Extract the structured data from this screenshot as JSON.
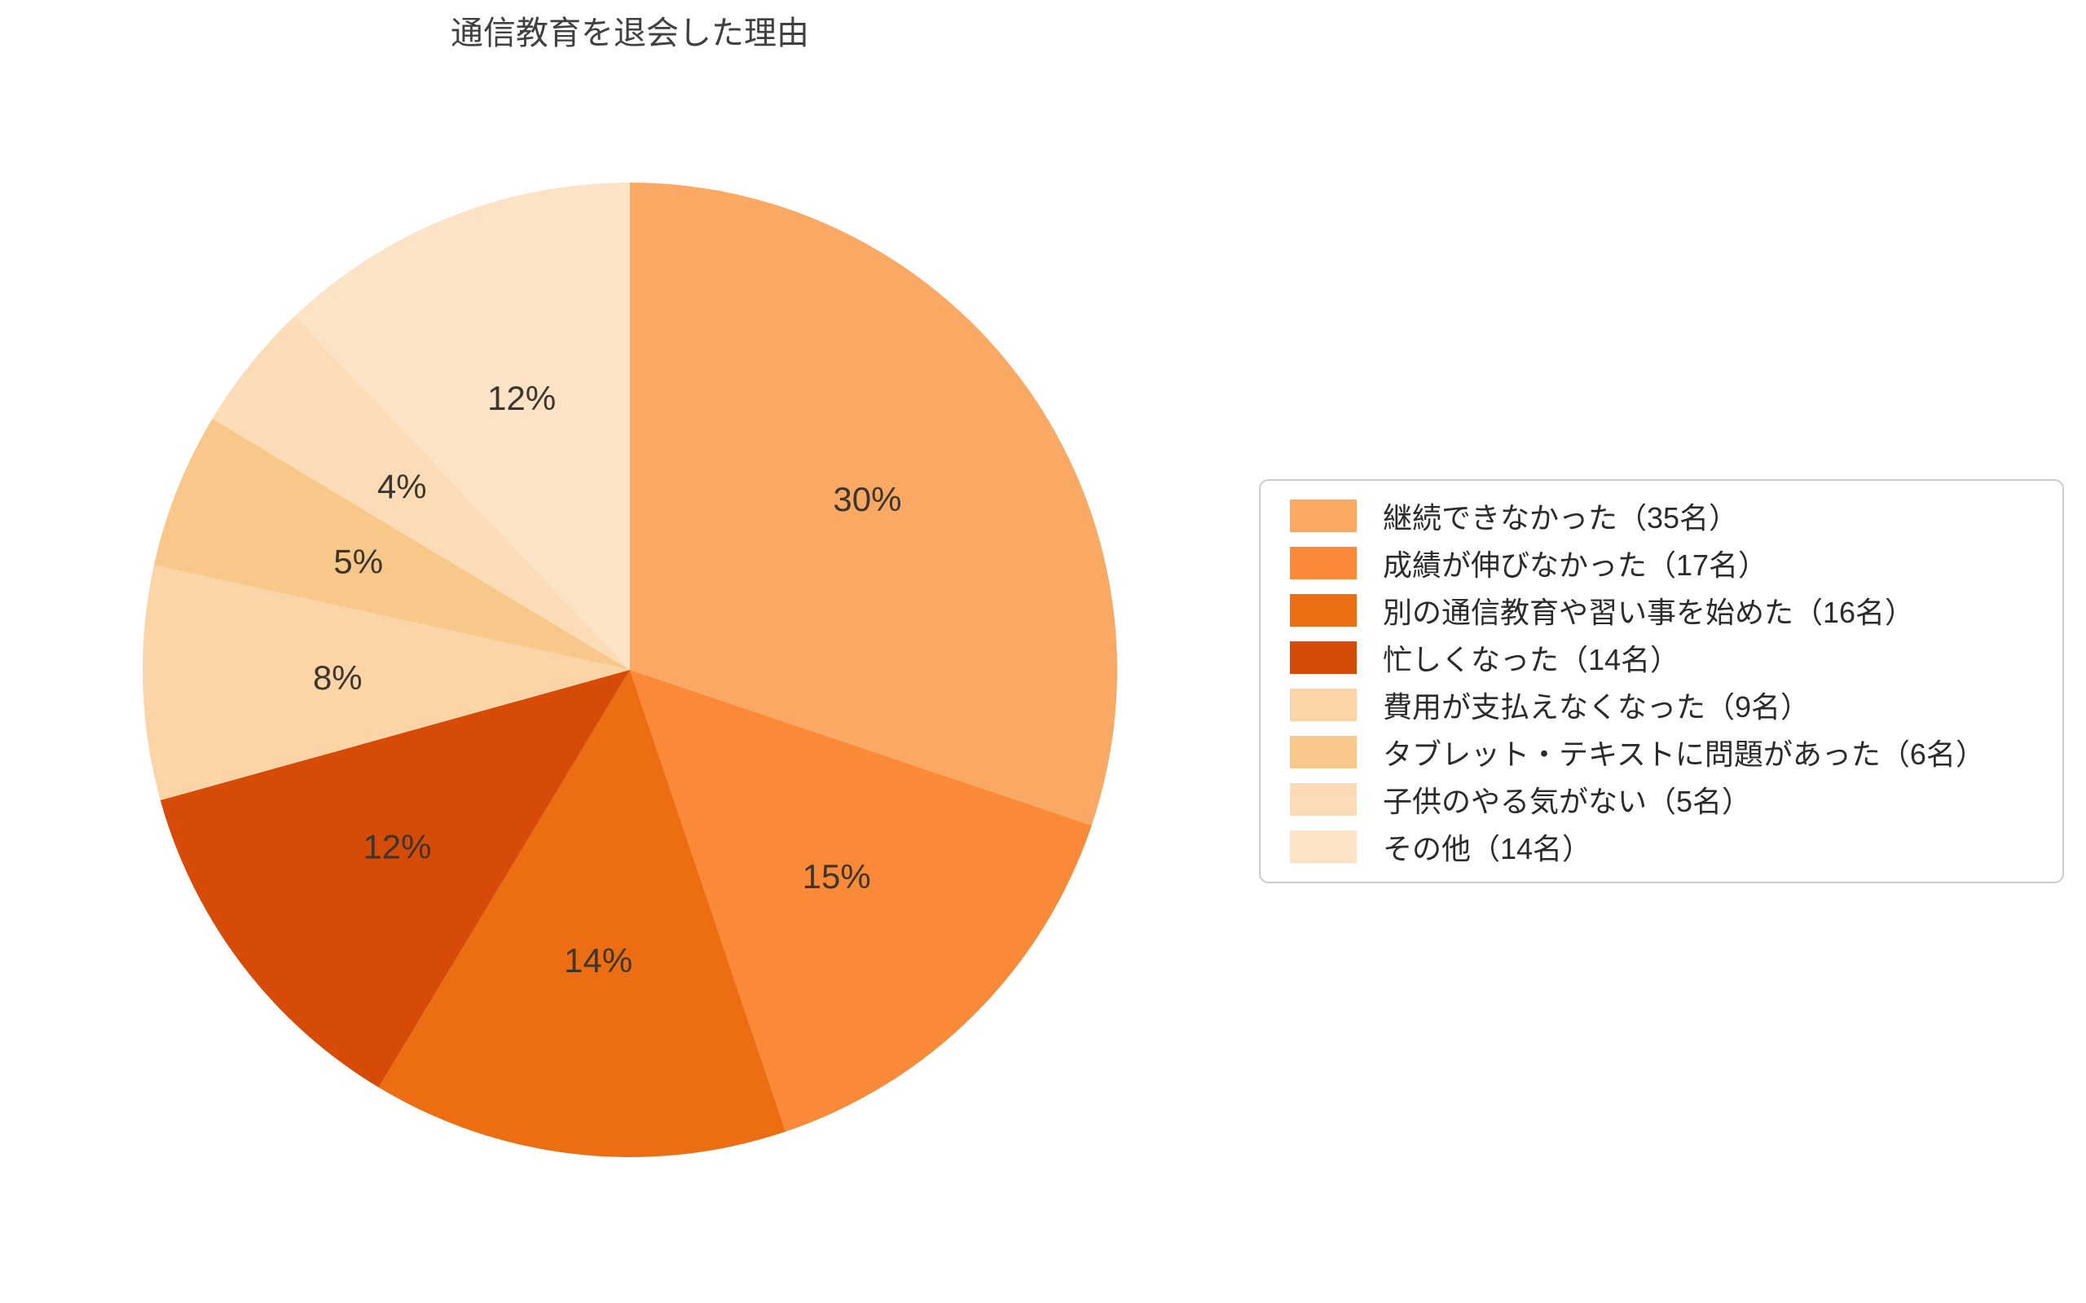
{
  "chart_data": {
    "type": "pie",
    "title": "通信教育を退会した理由",
    "start_angle": "top",
    "direction": "clockwise",
    "pct_distance": 0.6,
    "legend_position": "right",
    "legend_border_color": "#cbcbcb",
    "pct_label_color": "#3e362c",
    "title_color": "#404040",
    "legend_text_color": "#2b2b2b",
    "slices": [
      {
        "label": "継続できなかった（35名）",
        "value": 35,
        "pct": "30%",
        "color": "#f9a963"
      },
      {
        "label": "成績が伸びなかった（17名）",
        "value": 17,
        "pct": "15%",
        "color": "#fa8a38"
      },
      {
        "label": "別の通信教育や習い事を始めた（16名）",
        "value": 16,
        "pct": "14%",
        "color": "#ed6d12"
      },
      {
        "label": "忙しくなった（14名）",
        "value": 14,
        "pct": "12%",
        "color": "#d54b07"
      },
      {
        "label": "費用が支払えなくなった（9名）",
        "value": 9,
        "pct": "8%",
        "color": "#fbd5a8"
      },
      {
        "label": "タブレット・テキストに問題があった（6名）",
        "value": 6,
        "pct": "5%",
        "color": "#f8c88a"
      },
      {
        "label": "子供のやる気がない（5名）",
        "value": 5,
        "pct": "4%",
        "color": "#fbdcb6"
      },
      {
        "label": "その他（14名）",
        "value": 14,
        "pct": "12%",
        "color": "#fce3c6"
      }
    ]
  }
}
